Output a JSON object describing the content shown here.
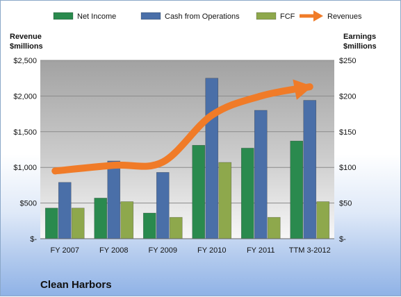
{
  "company_name": "Clean Harbors",
  "colors": {
    "net_income": "#2a8a4e",
    "cash_from_operations": "#4a6fa8",
    "fcf": "#8ea84c",
    "revenues": "#f07b28"
  },
  "chart_data": {
    "type": "bar",
    "categories": [
      "FY 2007",
      "FY 2008",
      "FY 2009",
      "FY 2010",
      "FY 2011",
      "TTM 3-2012"
    ],
    "series": [
      {
        "name": "Net Income",
        "axis": "right",
        "values": [
          43,
          57,
          36,
          131,
          127,
          137
        ]
      },
      {
        "name": "Cash from Operations",
        "axis": "right",
        "values": [
          79,
          109,
          93,
          225,
          180,
          194
        ]
      },
      {
        "name": "FCF",
        "axis": "right",
        "values": [
          43,
          52,
          30,
          107,
          30,
          52
        ]
      }
    ],
    "line_series": [
      {
        "name": "Revenues",
        "axis": "left",
        "style": "arrow",
        "values": [
          950,
          1030,
          1075,
          1730,
          2000,
          2130
        ]
      }
    ],
    "left_axis": {
      "label_lines": [
        "Revenue",
        "$millions"
      ],
      "ylim": [
        0,
        2500
      ],
      "ticks": [
        0,
        500,
        1000,
        1500,
        2000,
        2500
      ],
      "tick_labels": [
        "$-",
        "$500",
        "$1,000",
        "$1,500",
        "$2,000",
        "$2,500"
      ]
    },
    "right_axis": {
      "label_lines": [
        "Earnings",
        "$millions"
      ],
      "ylim": [
        0,
        250
      ],
      "ticks": [
        0,
        50,
        100,
        150,
        200,
        250
      ],
      "tick_labels": [
        "$-",
        "$50",
        "$100",
        "$150",
        "$200",
        "$250"
      ]
    },
    "legend": {
      "position": "top",
      "items": [
        "Net Income",
        "Cash from Operations",
        "FCF",
        "Revenues"
      ]
    },
    "grid": true
  }
}
